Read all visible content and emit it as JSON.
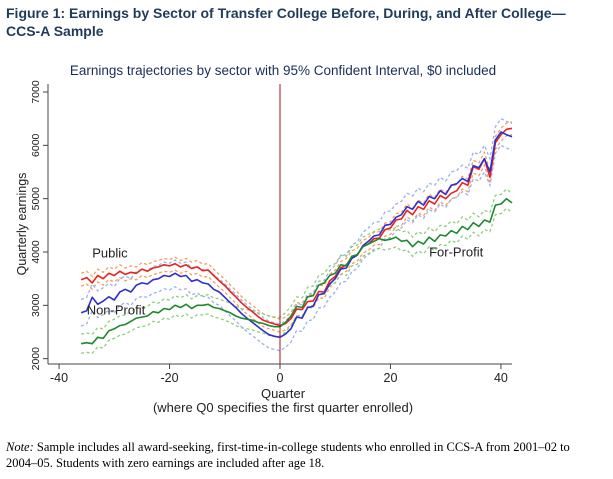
{
  "figure": {
    "title_line1": "Figure 1: Earnings by Sector of Transfer College Before, During, and After College—",
    "title_line2": "CCS-A Sample"
  },
  "note": {
    "label": "Note:",
    "text_line1": "Sample includes all award-seeking, first-time-in-college students who enrolled in CCS-A from 2001–02 to",
    "text_line2": "2004–05. Students with zero earnings are included after age 18."
  },
  "chart_data": {
    "type": "line",
    "title": "Earnings trajectories by sector with 95% Confident Interval, $0 included",
    "xlabel": "Quarter",
    "xlabel_sub": "(where Q0 specifies the first quarter enrolled)",
    "ylabel": "Quarterly earnings",
    "xlim": [
      -42,
      42
    ],
    "ylim": [
      1900,
      7150
    ],
    "xticks": [
      -40,
      -20,
      0,
      20,
      40
    ],
    "yticks": [
      2000,
      3000,
      4000,
      5000,
      6000,
      7000
    ],
    "reference_line_x": 0,
    "grid": false,
    "series": [
      {
        "name": "Public",
        "color": "#e8231f",
        "ci_color": "#f2a05a",
        "ci_halfwidth": 120,
        "label_anchor": [
          -34,
          3900
        ],
        "points": [
          [
            -36,
            3480
          ],
          [
            -35,
            3520
          ],
          [
            -34,
            3420
          ],
          [
            -33,
            3560
          ],
          [
            -32,
            3500
          ],
          [
            -31,
            3600
          ],
          [
            -30,
            3560
          ],
          [
            -29,
            3640
          ],
          [
            -28,
            3580
          ],
          [
            -27,
            3620
          ],
          [
            -26,
            3600
          ],
          [
            -25,
            3680
          ],
          [
            -24,
            3640
          ],
          [
            -23,
            3700
          ],
          [
            -22,
            3720
          ],
          [
            -21,
            3760
          ],
          [
            -20,
            3740
          ],
          [
            -19,
            3780
          ],
          [
            -18,
            3720
          ],
          [
            -17,
            3760
          ],
          [
            -16,
            3690
          ],
          [
            -15,
            3720
          ],
          [
            -14,
            3650
          ],
          [
            -13,
            3660
          ],
          [
            -12,
            3560
          ],
          [
            -11,
            3460
          ],
          [
            -10,
            3370
          ],
          [
            -9,
            3260
          ],
          [
            -8,
            3160
          ],
          [
            -7,
            3050
          ],
          [
            -6,
            2960
          ],
          [
            -5,
            2880
          ],
          [
            -4,
            2790
          ],
          [
            -3,
            2720
          ],
          [
            -2,
            2680
          ],
          [
            -1,
            2650
          ],
          [
            0,
            2620
          ],
          [
            1,
            2660
          ],
          [
            2,
            2750
          ],
          [
            3,
            2930
          ],
          [
            4,
            2920
          ],
          [
            5,
            3070
          ],
          [
            6,
            3080
          ],
          [
            7,
            3260
          ],
          [
            8,
            3250
          ],
          [
            9,
            3460
          ],
          [
            10,
            3540
          ],
          [
            11,
            3700
          ],
          [
            12,
            3760
          ],
          [
            13,
            3900
          ],
          [
            14,
            3950
          ],
          [
            15,
            4100
          ],
          [
            16,
            4150
          ],
          [
            17,
            4250
          ],
          [
            18,
            4260
          ],
          [
            19,
            4420
          ],
          [
            20,
            4450
          ],
          [
            21,
            4600
          ],
          [
            22,
            4620
          ],
          [
            23,
            4780
          ],
          [
            24,
            4700
          ],
          [
            25,
            4850
          ],
          [
            26,
            4800
          ],
          [
            27,
            4960
          ],
          [
            28,
            4900
          ],
          [
            29,
            5060
          ],
          [
            30,
            5000
          ],
          [
            31,
            5100
          ],
          [
            32,
            5150
          ],
          [
            33,
            5300
          ],
          [
            34,
            5250
          ],
          [
            35,
            5600
          ],
          [
            36,
            5550
          ],
          [
            37,
            5750
          ],
          [
            38,
            5400
          ],
          [
            39,
            6050
          ],
          [
            40,
            6200
          ],
          [
            41,
            6300
          ],
          [
            42,
            6320
          ]
        ]
      },
      {
        "name": "Non-Profit",
        "color": "#2d2fd0",
        "ci_color": "#9ab0ea",
        "ci_halfwidth": 250,
        "label_anchor": [
          -35,
          2830
        ],
        "points": [
          [
            -36,
            2860
          ],
          [
            -35,
            2900
          ],
          [
            -34,
            3150
          ],
          [
            -33,
            3020
          ],
          [
            -32,
            3080
          ],
          [
            -31,
            3160
          ],
          [
            -30,
            3100
          ],
          [
            -29,
            3250
          ],
          [
            -28,
            3300
          ],
          [
            -27,
            3250
          ],
          [
            -26,
            3380
          ],
          [
            -25,
            3420
          ],
          [
            -24,
            3400
          ],
          [
            -23,
            3480
          ],
          [
            -22,
            3500
          ],
          [
            -21,
            3560
          ],
          [
            -20,
            3540
          ],
          [
            -19,
            3600
          ],
          [
            -18,
            3540
          ],
          [
            -17,
            3560
          ],
          [
            -16,
            3450
          ],
          [
            -15,
            3480
          ],
          [
            -14,
            3420
          ],
          [
            -13,
            3400
          ],
          [
            -12,
            3300
          ],
          [
            -11,
            3250
          ],
          [
            -10,
            3150
          ],
          [
            -9,
            3050
          ],
          [
            -8,
            2960
          ],
          [
            -7,
            2850
          ],
          [
            -6,
            2760
          ],
          [
            -5,
            2680
          ],
          [
            -4,
            2600
          ],
          [
            -3,
            2520
          ],
          [
            -2,
            2450
          ],
          [
            -1,
            2420
          ],
          [
            0,
            2400
          ],
          [
            1,
            2460
          ],
          [
            2,
            2560
          ],
          [
            3,
            2780
          ],
          [
            4,
            2760
          ],
          [
            5,
            2960
          ],
          [
            6,
            2980
          ],
          [
            7,
            3200
          ],
          [
            8,
            3220
          ],
          [
            9,
            3400
          ],
          [
            10,
            3500
          ],
          [
            11,
            3680
          ],
          [
            12,
            3700
          ],
          [
            13,
            3880
          ],
          [
            14,
            3940
          ],
          [
            15,
            4120
          ],
          [
            16,
            4200
          ],
          [
            17,
            4300
          ],
          [
            18,
            4320
          ],
          [
            19,
            4500
          ],
          [
            20,
            4520
          ],
          [
            21,
            4650
          ],
          [
            22,
            4700
          ],
          [
            23,
            4850
          ],
          [
            24,
            4800
          ],
          [
            25,
            4950
          ],
          [
            26,
            4880
          ],
          [
            27,
            5040
          ],
          [
            28,
            5000
          ],
          [
            29,
            5150
          ],
          [
            30,
            5080
          ],
          [
            31,
            5250
          ],
          [
            32,
            5280
          ],
          [
            33,
            5380
          ],
          [
            34,
            5320
          ],
          [
            35,
            5620
          ],
          [
            36,
            5580
          ],
          [
            37,
            5750
          ],
          [
            38,
            5500
          ],
          [
            39,
            6100
          ],
          [
            40,
            6250
          ],
          [
            41,
            6200
          ],
          [
            42,
            6160
          ]
        ]
      },
      {
        "name": "For-Profit",
        "color": "#1e8a2c",
        "ci_color": "#8fcf7a",
        "ci_halfwidth": 180,
        "label_anchor": [
          27,
          3920
        ],
        "points": [
          [
            -36,
            2280
          ],
          [
            -35,
            2300
          ],
          [
            -34,
            2280
          ],
          [
            -33,
            2400
          ],
          [
            -32,
            2380
          ],
          [
            -31,
            2520
          ],
          [
            -30,
            2560
          ],
          [
            -29,
            2620
          ],
          [
            -28,
            2640
          ],
          [
            -27,
            2700
          ],
          [
            -26,
            2760
          ],
          [
            -25,
            2780
          ],
          [
            -24,
            2800
          ],
          [
            -23,
            2880
          ],
          [
            -22,
            2860
          ],
          [
            -21,
            2940
          ],
          [
            -20,
            2920
          ],
          [
            -19,
            3000
          ],
          [
            -18,
            2960
          ],
          [
            -17,
            3020
          ],
          [
            -16,
            2940
          ],
          [
            -15,
            3000
          ],
          [
            -14,
            3000
          ],
          [
            -13,
            3020
          ],
          [
            -12,
            2960
          ],
          [
            -11,
            2940
          ],
          [
            -10,
            2900
          ],
          [
            -9,
            2860
          ],
          [
            -8,
            2800
          ],
          [
            -7,
            2760
          ],
          [
            -6,
            2740
          ],
          [
            -5,
            2720
          ],
          [
            -4,
            2680
          ],
          [
            -3,
            2660
          ],
          [
            -2,
            2620
          ],
          [
            -1,
            2600
          ],
          [
            0,
            2600
          ],
          [
            1,
            2680
          ],
          [
            2,
            2800
          ],
          [
            3,
            2980
          ],
          [
            4,
            2960
          ],
          [
            5,
            3160
          ],
          [
            6,
            3180
          ],
          [
            7,
            3380
          ],
          [
            8,
            3420
          ],
          [
            9,
            3560
          ],
          [
            10,
            3600
          ],
          [
            11,
            3760
          ],
          [
            12,
            3740
          ],
          [
            13,
            3920
          ],
          [
            14,
            3950
          ],
          [
            15,
            4100
          ],
          [
            16,
            4150
          ],
          [
            17,
            4200
          ],
          [
            18,
            4250
          ],
          [
            19,
            4220
          ],
          [
            20,
            4240
          ],
          [
            21,
            4280
          ],
          [
            22,
            4200
          ],
          [
            23,
            4220
          ],
          [
            24,
            4100
          ],
          [
            25,
            4200
          ],
          [
            26,
            4150
          ],
          [
            27,
            4280
          ],
          [
            28,
            4200
          ],
          [
            29,
            4320
          ],
          [
            30,
            4300
          ],
          [
            31,
            4400
          ],
          [
            32,
            4350
          ],
          [
            33,
            4480
          ],
          [
            34,
            4420
          ],
          [
            35,
            4550
          ],
          [
            36,
            4480
          ],
          [
            37,
            4600
          ],
          [
            38,
            4560
          ],
          [
            39,
            4880
          ],
          [
            40,
            4900
          ],
          [
            41,
            5000
          ],
          [
            42,
            4920
          ]
        ]
      }
    ]
  }
}
